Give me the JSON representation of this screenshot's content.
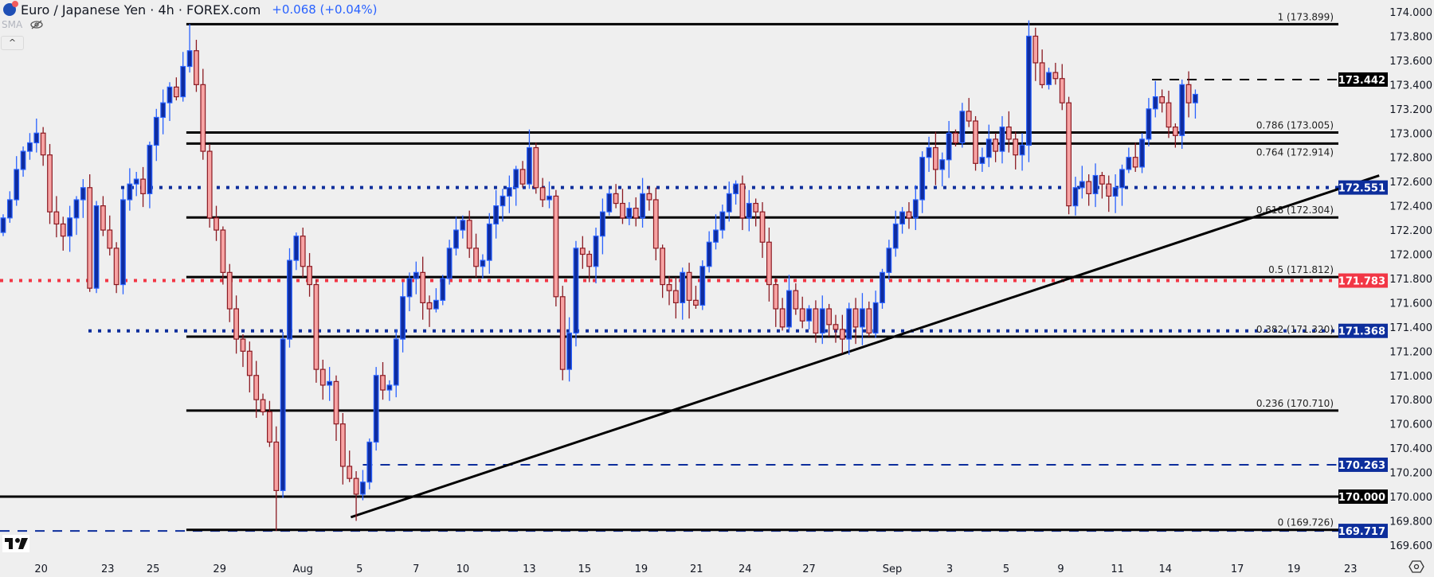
{
  "header": {
    "title": "Euro / Japanese Yen · 4h · FOREX.com",
    "change": "+0.068 (+0.04%)",
    "indicator": "SMA",
    "collapse_label": "^"
  },
  "colors": {
    "background": "#efefef",
    "bull_body": "#0f2c9e",
    "bull_border": "#2962ff",
    "bear_body": "#f7a3a3",
    "bear_border": "#8b1a22",
    "level_blue": "#0d2e9c",
    "level_red": "#f23645",
    "level_black": "#000000"
  },
  "chart_data": {
    "type": "candlestick",
    "title": "Euro / Japanese Yen · 4h · FOREX.com",
    "ylim": [
      169.5,
      174.1
    ],
    "y_ticks": [
      "174.000",
      "173.800",
      "173.600",
      "173.400",
      "173.200",
      "173.000",
      "172.800",
      "172.600",
      "172.400",
      "172.200",
      "172.000",
      "171.800",
      "171.600",
      "171.400",
      "171.200",
      "171.000",
      "170.800",
      "170.600",
      "170.400",
      "170.200",
      "170.000",
      "169.800",
      "169.600"
    ],
    "x_ticks": [
      {
        "label": "20",
        "index": 5.7
      },
      {
        "label": "23",
        "index": 15.7
      },
      {
        "label": "25",
        "index": 22.5
      },
      {
        "label": "29",
        "index": 32.5
      },
      {
        "label": "Aug",
        "index": 45
      },
      {
        "label": "5",
        "index": 53.5
      },
      {
        "label": "7",
        "index": 62
      },
      {
        "label": "10",
        "index": 69
      },
      {
        "label": "13",
        "index": 79
      },
      {
        "label": "15",
        "index": 87.3
      },
      {
        "label": "19",
        "index": 95.8
      },
      {
        "label": "21",
        "index": 104.1
      },
      {
        "label": "24",
        "index": 111.4
      },
      {
        "label": "27",
        "index": 121
      },
      {
        "label": "Sep",
        "index": 133.5
      },
      {
        "label": "3",
        "index": 142.1
      },
      {
        "label": "5",
        "index": 150.6
      },
      {
        "label": "9",
        "index": 158.8
      },
      {
        "label": "11",
        "index": 167.3
      },
      {
        "label": "14",
        "index": 174.5
      },
      {
        "label": "17",
        "index": 185.3
      },
      {
        "label": "19",
        "index": 193.8
      },
      {
        "label": "23",
        "index": 202.3
      }
    ],
    "close": [
      172.3,
      172.45,
      172.7,
      172.85,
      172.92,
      173.0,
      172.82,
      172.35,
      172.25,
      172.15,
      172.3,
      172.45,
      172.55,
      171.72,
      172.4,
      172.2,
      172.05,
      171.75,
      172.45,
      172.58,
      172.62,
      172.5,
      172.9,
      173.13,
      173.25,
      173.38,
      173.3,
      173.55,
      173.68,
      173.4,
      172.85,
      172.3,
      172.2,
      171.85,
      171.55,
      171.3,
      171.2,
      171.0,
      170.8,
      170.7,
      170.45,
      170.05,
      171.3,
      171.95,
      172.15,
      171.9,
      171.75,
      171.05,
      170.92,
      170.95,
      170.6,
      170.25,
      170.15,
      170.02,
      170.12,
      170.45,
      171.0,
      170.88,
      170.92,
      171.3,
      171.65,
      171.8,
      171.85,
      171.6,
      171.55,
      171.62,
      171.8,
      172.05,
      172.2,
      172.28,
      172.05,
      171.9,
      171.95,
      172.25,
      172.4,
      172.48,
      172.55,
      172.7,
      172.58,
      172.88,
      172.55,
      172.45,
      172.48,
      171.65,
      171.05,
      171.35,
      172.05,
      172.0,
      171.9,
      172.15,
      172.35,
      172.5,
      172.42,
      172.3,
      172.38,
      172.3,
      172.5,
      172.45,
      172.05,
      171.75,
      171.7,
      171.6,
      171.85,
      171.62,
      171.58,
      171.9,
      172.1,
      172.2,
      172.35,
      172.5,
      172.58,
      172.3,
      172.42,
      172.35,
      172.1,
      171.75,
      171.55,
      171.4,
      171.7,
      171.55,
      171.45,
      171.55,
      171.35,
      171.55,
      171.42,
      171.38,
      171.3,
      171.55,
      171.4,
      171.55,
      171.35,
      171.6,
      171.85,
      172.05,
      172.25,
      172.35,
      172.3,
      172.45,
      172.8,
      172.88,
      172.7,
      172.78,
      173.0,
      172.92,
      173.18,
      173.1,
      172.75,
      172.8,
      172.95,
      172.85,
      173.05,
      172.95,
      172.82,
      172.9,
      173.8,
      173.58,
      173.4,
      173.5,
      173.45,
      173.25,
      172.4,
      172.55,
      172.6,
      172.5,
      172.65,
      172.58,
      172.48,
      172.55,
      172.7,
      172.8,
      172.72,
      172.95,
      173.2,
      173.3,
      173.25,
      173.05,
      172.98,
      173.4,
      173.25,
      173.32
    ],
    "wick_extremes": [
      {
        "index": 28,
        "high": 173.9
      },
      {
        "index": 41,
        "low": 169.717
      },
      {
        "index": 53,
        "low": 169.8
      },
      {
        "index": 79,
        "high": 173.03
      },
      {
        "index": 154,
        "high": 173.93
      },
      {
        "index": 177,
        "high": 173.442
      }
    ],
    "levels": [
      {
        "name": "fib-1",
        "price": 173.899,
        "label": "1 (173.899)",
        "style": "solid",
        "color": "#000000",
        "from_index": 27.5
      },
      {
        "name": "fib-0786",
        "price": 173.005,
        "label": "0.786 (173.005)",
        "style": "solid",
        "color": "#000000",
        "from_index": 27.5
      },
      {
        "name": "fib-0764",
        "price": 172.914,
        "label": "0.764 (172.914)",
        "style": "solid",
        "color": "#000000",
        "from_index": 27.5
      },
      {
        "name": "fib-0618",
        "price": 172.304,
        "label": "0.618 (172.304)",
        "style": "solid",
        "color": "#000000",
        "from_index": 27.5
      },
      {
        "name": "fib-05",
        "price": 171.812,
        "label": "0.5 (171.812)",
        "style": "solid",
        "color": "#000000",
        "from_index": 27.5
      },
      {
        "name": "fib-0382",
        "price": 171.32,
        "label": "0.382 (171.320)",
        "style": "solid",
        "color": "#000000",
        "from_index": 27.5
      },
      {
        "name": "fib-0236",
        "price": 170.71,
        "label": "0.236 (170.710)",
        "style": "solid",
        "color": "#000000",
        "from_index": 27.5
      },
      {
        "name": "fib-0",
        "price": 169.726,
        "label": "0 (169.726)",
        "style": "solid",
        "color": "#000000",
        "from_index": 27.5
      },
      {
        "name": "round-170",
        "price": 170.0,
        "label": "",
        "style": "solid",
        "color": "#000000",
        "from_index": -1
      }
    ],
    "horizontal_lines": [
      {
        "name": "resistance-173442",
        "price": 173.442,
        "tag": "173.442",
        "style": "dashed",
        "color": "#000000",
        "from_index": 172.5
      },
      {
        "name": "level-172551",
        "price": 172.551,
        "tag": "172.551",
        "style": "dotted",
        "color": "#0d2e9c",
        "from_index": 17.7
      },
      {
        "name": "level-171783",
        "price": 171.783,
        "tag": "171.783",
        "style": "dotted",
        "color": "#f23645",
        "from_index": -1
      },
      {
        "name": "level-171368",
        "price": 171.368,
        "tag": "171.368",
        "style": "dotted",
        "color": "#0d2e9c",
        "from_index": 12.8
      },
      {
        "name": "level-170263",
        "price": 170.263,
        "tag": "170.263",
        "style": "dashed",
        "color": "#0d2e9c",
        "from_index": 54
      },
      {
        "name": "round-170000",
        "price": 170.0,
        "tag": "170.000",
        "style": "none",
        "color": "#000000",
        "from_index": -1
      },
      {
        "name": "level-169717",
        "price": 169.717,
        "tag": "169.717",
        "style": "dashed",
        "color": "#0d2e9c",
        "from_index": -1
      }
    ],
    "trendline": {
      "from": {
        "index": 52.2,
        "price": 169.83
      },
      "to": {
        "index": 206.6,
        "price": 172.65
      }
    }
  }
}
